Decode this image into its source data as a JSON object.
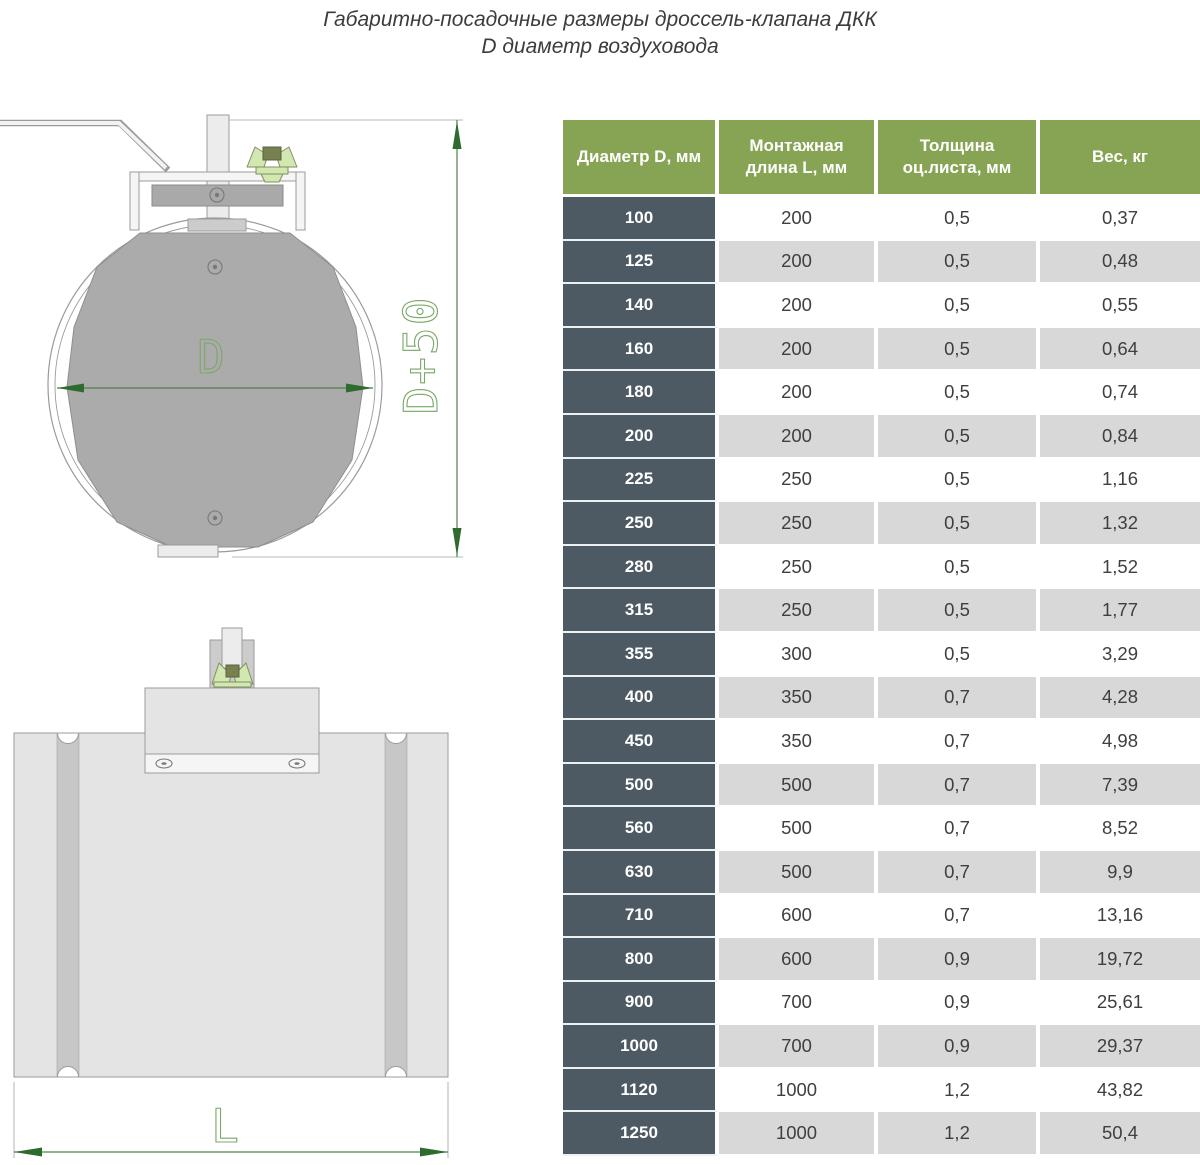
{
  "title": {
    "line1": "Габаритно-посадочные размеры дроссель-клапана ДКК",
    "line2": "D диаметр воздуховода"
  },
  "diagram": {
    "front_view": {
      "label_d": "D",
      "label_d_plus_50": "D+50"
    },
    "side_view": {
      "label_l": "L"
    }
  },
  "table": {
    "headers": [
      "Диаметр D, мм",
      "Монтажная длина L, мм",
      "Толщина оц.листа, мм",
      "Вес, кг"
    ],
    "rows": [
      [
        "100",
        "200",
        "0,5",
        "0,37"
      ],
      [
        "125",
        "200",
        "0,5",
        "0,48"
      ],
      [
        "140",
        "200",
        "0,5",
        "0,55"
      ],
      [
        "160",
        "200",
        "0,5",
        "0,64"
      ],
      [
        "180",
        "200",
        "0,5",
        "0,74"
      ],
      [
        "200",
        "200",
        "0,5",
        "0,84"
      ],
      [
        "225",
        "250",
        "0,5",
        "1,16"
      ],
      [
        "250",
        "250",
        "0,5",
        "1,32"
      ],
      [
        "280",
        "250",
        "0,5",
        "1,52"
      ],
      [
        "315",
        "250",
        "0,5",
        "1,77"
      ],
      [
        "355",
        "300",
        "0,5",
        "3,29"
      ],
      [
        "400",
        "350",
        "0,7",
        "4,28"
      ],
      [
        "450",
        "350",
        "0,7",
        "4,98"
      ],
      [
        "500",
        "500",
        "0,7",
        "7,39"
      ],
      [
        "560",
        "500",
        "0,7",
        "8,52"
      ],
      [
        "630",
        "500",
        "0,7",
        "9,9"
      ],
      [
        "710",
        "600",
        "0,7",
        "13,16"
      ],
      [
        "800",
        "600",
        "0,9",
        "19,72"
      ],
      [
        "900",
        "700",
        "0,9",
        "25,61"
      ],
      [
        "1000",
        "700",
        "0,9",
        "29,37"
      ],
      [
        "1120",
        "1000",
        "1,2",
        "43,82"
      ],
      [
        "1250",
        "1000",
        "1,2",
        "50,4"
      ]
    ]
  },
  "colors": {
    "header_green": "#87a454",
    "row_dark": "#4d5a64",
    "row_gray": "#d8d8d8",
    "text_dark": "#3f3f3f",
    "dim_line": "#54804a",
    "dim_arrow": "#2e6b2e",
    "dim_label": "#7ba769",
    "drawing_line": "#9b9b9b",
    "blade_gray": "#ababab"
  }
}
